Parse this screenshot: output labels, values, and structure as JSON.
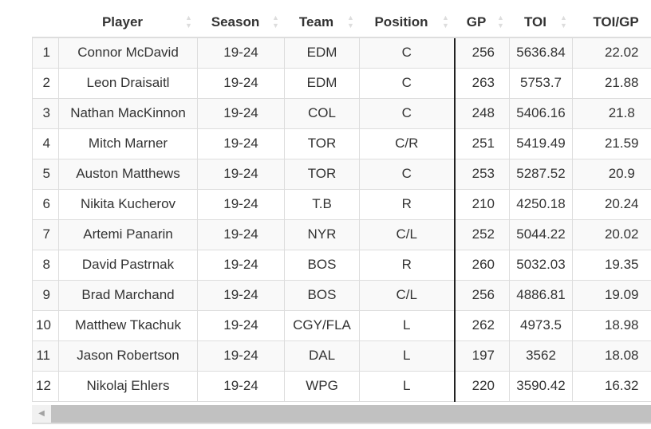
{
  "columns": [
    {
      "label": ""
    },
    {
      "label": "Player",
      "sort": "none"
    },
    {
      "label": "Season",
      "sort": "none"
    },
    {
      "label": "Team",
      "sort": "none"
    },
    {
      "label": "Position",
      "sort": "none"
    },
    {
      "label": "GP",
      "sort": "none"
    },
    {
      "label": "TOI",
      "sort": "none"
    },
    {
      "label": "TOI/GP",
      "sort": "descending"
    }
  ],
  "rows": [
    [
      "1",
      "Connor McDavid",
      "19-24",
      "EDM",
      "C",
      "256",
      "5636.84",
      "22.02"
    ],
    [
      "2",
      "Leon Draisaitl",
      "19-24",
      "EDM",
      "C",
      "263",
      "5753.7",
      "21.88"
    ],
    [
      "3",
      "Nathan MacKinnon",
      "19-24",
      "COL",
      "C",
      "248",
      "5406.16",
      "21.8"
    ],
    [
      "4",
      "Mitch Marner",
      "19-24",
      "TOR",
      "C/R",
      "251",
      "5419.49",
      "21.59"
    ],
    [
      "5",
      "Auston Matthews",
      "19-24",
      "TOR",
      "C",
      "253",
      "5287.52",
      "20.9"
    ],
    [
      "6",
      "Nikita Kucherov",
      "19-24",
      "T.B",
      "R",
      "210",
      "4250.18",
      "20.24"
    ],
    [
      "7",
      "Artemi Panarin",
      "19-24",
      "NYR",
      "C/L",
      "252",
      "5044.22",
      "20.02"
    ],
    [
      "8",
      "David Pastrnak",
      "19-24",
      "BOS",
      "R",
      "260",
      "5032.03",
      "19.35"
    ],
    [
      "9",
      "Brad Marchand",
      "19-24",
      "BOS",
      "C/L",
      "256",
      "4886.81",
      "19.09"
    ],
    [
      "10",
      "Matthew Tkachuk",
      "19-24",
      "CGY/FLA",
      "L",
      "262",
      "4973.5",
      "18.98"
    ],
    [
      "11",
      "Jason Robertson",
      "19-24",
      "DAL",
      "L",
      "197",
      "3562",
      "18.08"
    ],
    [
      "12",
      "Nikolaj Ehlers",
      "19-24",
      "WPG",
      "L",
      "220",
      "3590.42",
      "16.32"
    ]
  ],
  "icons": {
    "sort": "sort-arrows-icon",
    "scroll_left": "scroll-left-arrow-icon"
  }
}
